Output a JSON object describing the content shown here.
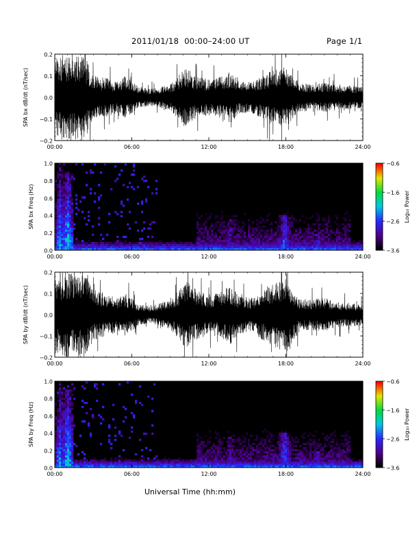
{
  "header": {
    "title": "2011/01/18  00:00–24:00 UT",
    "page": "Page 1/1"
  },
  "xaxis_label": "Universal Time (hh:mm)",
  "chart_data": [
    {
      "type": "line",
      "title": "",
      "ylabel": "SPA bx dB/dt (nT/sec)",
      "xlabel": "",
      "xlim": [
        0,
        24
      ],
      "ylim": [
        -0.2,
        0.2
      ],
      "xticks": [
        "00:00",
        "06:00",
        "12:00",
        "18:00",
        "24:00"
      ],
      "yticks": [
        "−0.2",
        "−0.1",
        "0.0",
        "0.1",
        "0.2"
      ],
      "series": [
        {
          "x": [
            0,
            0.7,
            1.3,
            2.3,
            3,
            4,
            5,
            5.5,
            6.5,
            7.5,
            9,
            10.2,
            11,
            12.3,
            13.7,
            14.3,
            15.3,
            16.2,
            17,
            18,
            19,
            20,
            21,
            22,
            24
          ],
          "amplitude": [
            0.18,
            0.2,
            0.2,
            0.2,
            0.1,
            0.09,
            0.07,
            0.1,
            0.05,
            0.04,
            0.06,
            0.14,
            0.1,
            0.08,
            0.12,
            0.08,
            0.07,
            0.1,
            0.13,
            0.14,
            0.07,
            0.06,
            0.07,
            0.06,
            0.05
          ]
        }
      ]
    },
    {
      "type": "heatmap",
      "title": "",
      "ylabel": "SPA bx Freq (Hz)",
      "xlabel": "Universal Time (hh:mm)",
      "xlim": [
        0,
        24
      ],
      "ylim": [
        0,
        1.0
      ],
      "xticks": [
        "00:00",
        "06:00",
        "12:00",
        "18:00",
        "24:00"
      ],
      "yticks": [
        "0.0",
        "0.2",
        "0.4",
        "0.6",
        "0.8",
        "1.0"
      ],
      "colorbar": {
        "label": "Log₁₀ Power",
        "range": [
          -3.6,
          -0.6
        ],
        "ticks": [
          "−0.6",
          "−1.6",
          "−2.6",
          "−3.6"
        ]
      },
      "features": [
        {
          "t": 0.4,
          "f_max": 1.0,
          "level": -2.2
        },
        {
          "t": 1.0,
          "f_max": 0.9,
          "level": -2.0
        },
        {
          "t": 13.7,
          "f_max": 0.35,
          "level": -2.8
        },
        {
          "t": 17.9,
          "f_max": 0.4,
          "level": -2.4
        },
        {
          "t": 20.5,
          "f_max": 0.2,
          "level": -2.8
        }
      ]
    },
    {
      "type": "line",
      "title": "",
      "ylabel": "SPA by dB/dt (nT/sec)",
      "xlabel": "",
      "xlim": [
        0,
        24
      ],
      "ylim": [
        -0.2,
        0.2
      ],
      "xticks": [
        "00:00",
        "06:00",
        "12:00",
        "18:00",
        "24:00"
      ],
      "yticks": [
        "−0.2",
        "−0.1",
        "0.0",
        "0.1",
        "0.2"
      ],
      "series": [
        {
          "x": [
            0,
            0.7,
            1.3,
            2.3,
            3,
            4,
            5,
            5.5,
            6.5,
            7.5,
            9,
            10.2,
            11,
            12.3,
            13.7,
            14.3,
            15.3,
            16.2,
            17,
            18,
            19,
            20,
            21,
            22,
            24
          ],
          "amplitude": [
            0.18,
            0.2,
            0.2,
            0.2,
            0.12,
            0.1,
            0.08,
            0.1,
            0.05,
            0.04,
            0.07,
            0.16,
            0.12,
            0.09,
            0.14,
            0.09,
            0.08,
            0.12,
            0.15,
            0.18,
            0.08,
            0.07,
            0.08,
            0.06,
            0.05
          ]
        }
      ]
    },
    {
      "type": "heatmap",
      "title": "",
      "ylabel": "SPA by Freq (Hz)",
      "xlabel": "Universal Time (hh:mm)",
      "xlim": [
        0,
        24
      ],
      "ylim": [
        0,
        1.0
      ],
      "xticks": [
        "00:00",
        "06:00",
        "12:00",
        "18:00",
        "24:00"
      ],
      "yticks": [
        "0.0",
        "0.2",
        "0.4",
        "0.6",
        "0.8",
        "1.0"
      ],
      "colorbar": {
        "label": "Log₁₀ Power",
        "range": [
          -3.6,
          -0.6
        ],
        "ticks": [
          "−0.6",
          "−1.6",
          "−2.6",
          "−3.6"
        ]
      },
      "features": [
        {
          "t": 0.4,
          "f_max": 1.0,
          "level": -2.2
        },
        {
          "t": 1.0,
          "f_max": 0.9,
          "level": -2.0
        },
        {
          "t": 13.7,
          "f_max": 0.35,
          "level": -2.8
        },
        {
          "t": 17.9,
          "f_max": 0.4,
          "level": -2.4
        },
        {
          "t": 20.5,
          "f_max": 0.2,
          "level": -2.8
        }
      ]
    }
  ]
}
